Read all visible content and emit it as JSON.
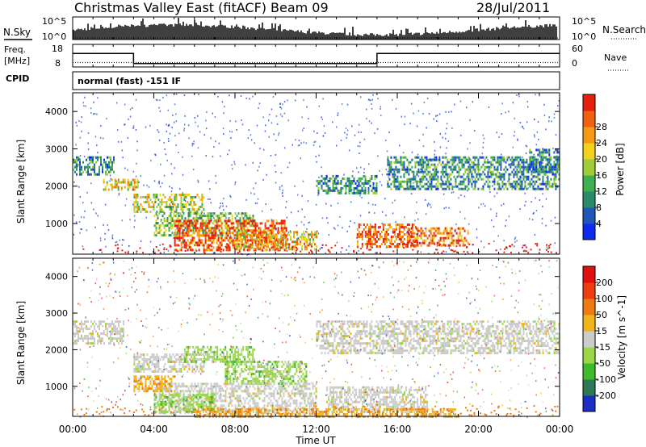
{
  "header": {
    "title": "Christmas Valley East (fitACF)",
    "beam": "Beam 09",
    "date": "28/Jul/2011"
  },
  "top_panel": {
    "nsky_label": "N.Sky",
    "nsearch_label": "N.Search",
    "left_tick_top": "10^5",
    "left_tick_bottom": "10^0",
    "right_tick_top": "10^5",
    "right_tick_bottom": "10^0"
  },
  "freq_panel": {
    "label_line1": "Freq.",
    "label_line2": "[MHz]",
    "left_tick_top": "18",
    "left_tick_bottom": "8",
    "right_tick_top": "60",
    "right_tick_bottom": "0",
    "nave_label": "Nave",
    "freq_high_mhz": 14,
    "freq_low_mhz": 9.5,
    "freq_low_start_hr": 3.0,
    "freq_low_end_hr": 15.0,
    "nave_level": 12
  },
  "cpid": {
    "label": "CPID",
    "mode_text": "normal (fast) -151 IF"
  },
  "chart_data": [
    {
      "type": "heatmap",
      "name": "power-panel",
      "ylabel": "Slant Range [km]",
      "xlabel": "Time UT",
      "ylim": [
        180,
        4500
      ],
      "xlim": [
        0,
        24
      ],
      "y_ticks": [
        "1000",
        "2000",
        "3000",
        "4000"
      ],
      "x_ticks": [
        "00:00",
        "04:00",
        "08:00",
        "12:00",
        "16:00",
        "20:00",
        "00:00"
      ],
      "colorbar_label": "Power [dB]",
      "colorbar_ticks": [
        "4",
        "8",
        "12",
        "16",
        "20",
        "24",
        "28"
      ],
      "colorbar_colors": [
        "#0b2bf0",
        "#1f56b8",
        "#2a8a6c",
        "#3fb050",
        "#a0cc3a",
        "#f2d21c",
        "#f59a12",
        "#f06010",
        "#e4200c"
      ],
      "features": [
        {
          "t0": 0.0,
          "t1": 2.0,
          "r0": 2300,
          "r1": 2800,
          "level": 0.3
        },
        {
          "t0": 1.5,
          "t1": 3.2,
          "r0": 1900,
          "r1": 2200,
          "level": 0.6
        },
        {
          "t0": 3.0,
          "t1": 6.5,
          "r0": 1300,
          "r1": 1800,
          "level": 0.55
        },
        {
          "t0": 4.0,
          "t1": 9.0,
          "r0": 700,
          "r1": 1300,
          "level": 0.45
        },
        {
          "t0": 5.0,
          "t1": 10.5,
          "r0": 300,
          "r1": 1100,
          "level": 0.85
        },
        {
          "t0": 8.0,
          "t1": 12.0,
          "r0": 300,
          "r1": 800,
          "level": 0.65
        },
        {
          "t0": 14.0,
          "t1": 17.0,
          "r0": 400,
          "r1": 1000,
          "level": 0.85
        },
        {
          "t0": 16.5,
          "t1": 19.5,
          "r0": 400,
          "r1": 900,
          "level": 0.8
        },
        {
          "t0": 12.0,
          "t1": 15.0,
          "r0": 1800,
          "r1": 2300,
          "level": 0.3
        },
        {
          "t0": 15.5,
          "t1": 24.0,
          "r0": 1900,
          "r1": 2800,
          "level": 0.3
        },
        {
          "t0": 22.5,
          "t1": 24.0,
          "r0": 2400,
          "r1": 3000,
          "level": 0.25
        }
      ]
    },
    {
      "type": "heatmap",
      "name": "velocity-panel",
      "ylabel": "Slant Range [km]",
      "xlabel": "Time UT",
      "ylim": [
        180,
        4500
      ],
      "xlim": [
        0,
        24
      ],
      "y_ticks": [
        "1000",
        "2000",
        "3000",
        "4000"
      ],
      "x_ticks": [
        "00:00",
        "04:00",
        "08:00",
        "12:00",
        "16:00",
        "20:00",
        "00:00"
      ],
      "colorbar_label": "Velocity [m s^-1]",
      "colorbar_ticks": [
        "200",
        "100",
        "50",
        "15",
        "-15",
        "-50",
        "-100",
        "-200"
      ],
      "colorbar_colors": [
        "#1b2ec8",
        "#2b7a55",
        "#3dbb2a",
        "#9ad848",
        "#cccccc",
        "#f0b418",
        "#f07a10",
        "#ee3c0c",
        "#e01010"
      ],
      "features": [
        {
          "t0": 0.0,
          "t1": 2.5,
          "r0": 2200,
          "r1": 2800,
          "vel": 0
        },
        {
          "t0": 3.0,
          "t1": 6.5,
          "r0": 1400,
          "r1": 1900,
          "vel": 0
        },
        {
          "t0": 5.5,
          "t1": 9.0,
          "r0": 1700,
          "r1": 2100,
          "vel": 60
        },
        {
          "t0": 7.5,
          "t1": 11.5,
          "r0": 1100,
          "r1": 1700,
          "vel": 55
        },
        {
          "t0": 4.0,
          "t1": 12.0,
          "r0": 300,
          "r1": 1100,
          "vel": 0
        },
        {
          "t0": 4.0,
          "t1": 7.0,
          "r0": 300,
          "r1": 800,
          "vel": 55
        },
        {
          "t0": 3.0,
          "t1": 5.0,
          "r0": 900,
          "r1": 1300,
          "vel": -40
        },
        {
          "t0": 12.5,
          "t1": 17.5,
          "r0": 300,
          "r1": 1000,
          "vel": 0
        },
        {
          "t0": 6.0,
          "t1": 19.0,
          "r0": 200,
          "r1": 400,
          "vel": -60
        },
        {
          "t0": 12.0,
          "t1": 24.0,
          "r0": 1900,
          "r1": 2800,
          "vel": 0
        }
      ]
    }
  ]
}
